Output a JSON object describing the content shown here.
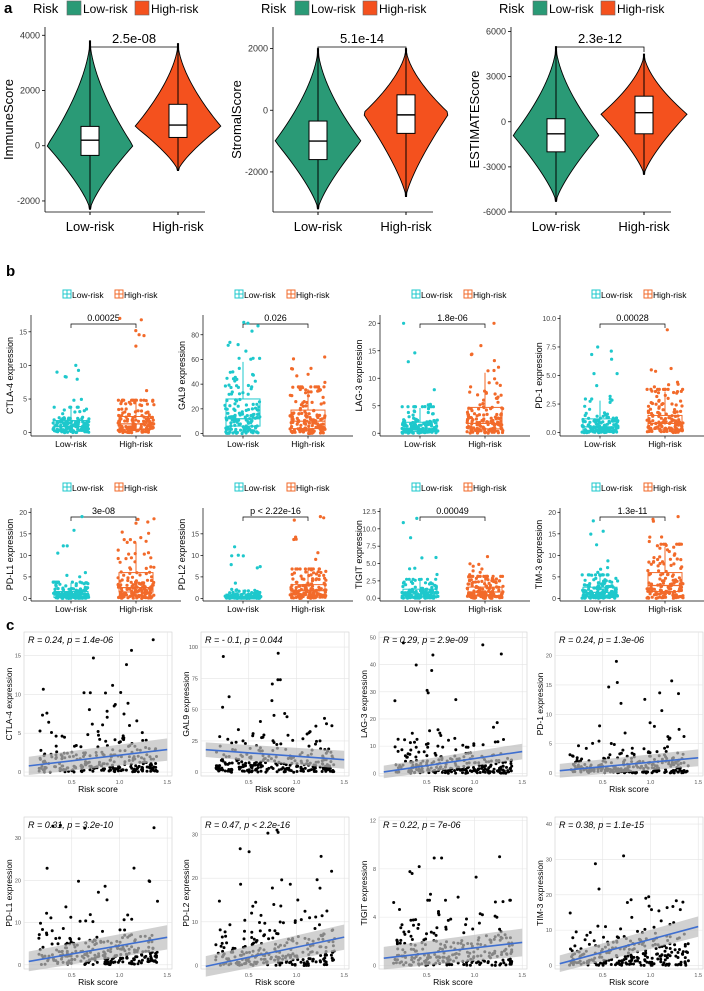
{
  "colors": {
    "low_a": "#2a9a76",
    "high_a": "#f4511e",
    "low_b": "#1ec8cc",
    "high_b": "#f26a2a",
    "reg_line": "#3f6fd0",
    "ci_band": "#bdbdbd",
    "grid": "#e4e4e4",
    "panel_bg_c": "#ffffff"
  },
  "panel_labels": [
    "a",
    "b",
    "c"
  ],
  "panel_a": {
    "legend": {
      "title": "Risk",
      "items": [
        "Low-risk",
        "High-risk"
      ]
    },
    "categories": [
      "Low-risk",
      "High-risk"
    ],
    "charts": [
      {
        "type": "violin",
        "ylabel": "ImmuneScore",
        "pvalue": "2.5e-08",
        "ylim": [
          -2400,
          4300
        ],
        "yticks": [
          "-2000",
          "0",
          "2000",
          "4000"
        ],
        "ytick_values": [
          -2000,
          0,
          2000,
          4000
        ],
        "groups": [
          {
            "name": "Low-risk",
            "min": -2300,
            "q1": -350,
            "median": 200,
            "q3": 700,
            "max": 3800,
            "mode": 0
          },
          {
            "name": "High-risk",
            "min": -900,
            "q1": 300,
            "median": 750,
            "q3": 1500,
            "max": 3700,
            "mode": 700
          }
        ]
      },
      {
        "type": "violin",
        "ylabel": "StromalScore",
        "pvalue": "5.1e-14",
        "ylim": [
          -3300,
          2700
        ],
        "yticks": [
          "-2000",
          "0",
          "2000"
        ],
        "ytick_values": [
          -2000,
          0,
          2000
        ],
        "groups": [
          {
            "name": "Low-risk",
            "min": -3200,
            "q1": -1600,
            "median": -1000,
            "q3": -350,
            "max": 2000,
            "mode": -1000
          },
          {
            "name": "High-risk",
            "min": -2800,
            "q1": -750,
            "median": -150,
            "q3": 500,
            "max": 2000,
            "mode": -100
          }
        ]
      },
      {
        "type": "violin",
        "ylabel": "ESTIMATEScore",
        "pvalue": "2.3e-12",
        "ylim": [
          -6000,
          6300
        ],
        "yticks": [
          "-6000",
          "-3000",
          "0",
          "3000",
          "6000"
        ],
        "ytick_values": [
          -6000,
          -3000,
          0,
          3000,
          6000
        ],
        "groups": [
          {
            "name": "Low-risk",
            "min": -5300,
            "q1": -2000,
            "median": -800,
            "q3": 200,
            "max": 5000,
            "mode": -900
          },
          {
            "name": "High-risk",
            "min": -3500,
            "q1": -800,
            "median": 600,
            "q3": 1700,
            "max": 4500,
            "mode": 500
          }
        ]
      }
    ]
  },
  "panel_b": {
    "legend": {
      "items": [
        "Low-risk",
        "High-risk"
      ]
    },
    "categories": [
      "Low-risk",
      "High-risk"
    ],
    "charts": [
      {
        "type": "box_jitter",
        "ylabel": "CTLA-4 expression",
        "pvalue": "0.00025",
        "ylim": [
          -0.5,
          17.5
        ],
        "yticks": [
          0,
          5,
          10,
          15
        ],
        "groups": [
          {
            "name": "Low-risk",
            "min": 0,
            "q1": 0.2,
            "median": 0.9,
            "q3": 1.8,
            "max": 3.6,
            "top": 10
          },
          {
            "name": "High-risk",
            "min": 0,
            "q1": 0.5,
            "median": 1.3,
            "q3": 2.4,
            "max": 4.6,
            "top": 17
          }
        ]
      },
      {
        "type": "box_jitter",
        "ylabel": "GAL9 expression",
        "pvalue": "0.026",
        "ylim": [
          -2,
          96
        ],
        "yticks": [
          0,
          20,
          40,
          60,
          80
        ],
        "groups": [
          {
            "name": "Low-risk",
            "min": 0,
            "q1": 6,
            "median": 12,
            "q3": 28,
            "max": 58,
            "top": 90
          },
          {
            "name": "High-risk",
            "min": 0,
            "q1": 4,
            "median": 10,
            "q3": 19,
            "max": 36,
            "top": 62
          }
        ]
      },
      {
        "type": "box_jitter",
        "ylabel": "LAG-3 expression",
        "pvalue": "1.8e-06",
        "ylim": [
          -0.5,
          21.5
        ],
        "yticks": [
          0,
          5,
          10,
          15,
          20
        ],
        "groups": [
          {
            "name": "Low-risk",
            "min": 0,
            "q1": 0.3,
            "median": 0.9,
            "q3": 2.0,
            "max": 4.6,
            "top": 20
          },
          {
            "name": "High-risk",
            "min": 0,
            "q1": 0.8,
            "median": 1.8,
            "q3": 4.7,
            "max": 11,
            "top": 20
          }
        ]
      },
      {
        "type": "box_jitter",
        "ylabel": "PD-1 expression",
        "pvalue": "0.00028",
        "ylim": [
          -0.3,
          10.3
        ],
        "yticks": [
          0,
          2.5,
          5,
          7.5,
          10
        ],
        "yticklabels": [
          "0.0",
          "2.5",
          "5.0",
          "7.5",
          "10.0"
        ],
        "groups": [
          {
            "name": "Low-risk",
            "min": 0,
            "q1": 0.2,
            "median": 0.5,
            "q3": 1.2,
            "max": 2.8,
            "top": 7.5
          },
          {
            "name": "High-risk",
            "min": 0,
            "q1": 0.3,
            "median": 0.8,
            "q3": 1.5,
            "max": 3.6,
            "top": 9
          }
        ]
      },
      {
        "type": "box_jitter",
        "ylabel": "PD-L1 expression",
        "pvalue": "3e-08",
        "ylim": [
          -0.6,
          21
        ],
        "yticks": [
          0,
          5,
          10,
          15,
          20
        ],
        "groups": [
          {
            "name": "Low-risk",
            "min": 0,
            "q1": 0.2,
            "median": 0.8,
            "q3": 1.6,
            "max": 3.6,
            "top": 19
          },
          {
            "name": "High-risk",
            "min": 0,
            "q1": 1.5,
            "median": 2.5,
            "q3": 6.0,
            "max": 13,
            "top": 18.5
          }
        ]
      },
      {
        "type": "box_jitter",
        "ylabel": "PD-L2 expression",
        "pvalue": "p < 2.22e-16",
        "ylim": [
          -0.6,
          21
        ],
        "yticks": [
          0,
          5,
          10,
          15
        ],
        "groups": [
          {
            "name": "Low-risk",
            "min": 0,
            "q1": 0.2,
            "median": 0.4,
            "q3": 1.0,
            "max": 2.0,
            "top": 12
          },
          {
            "name": "High-risk",
            "min": 0,
            "q1": 0.8,
            "median": 1.8,
            "q3": 3.2,
            "max": 6.5,
            "top": 19
          }
        ]
      },
      {
        "type": "box_jitter",
        "ylabel": "TIGIT expression",
        "pvalue": "0.00049",
        "ylim": [
          -0.4,
          13
        ],
        "yticks": [
          0,
          2.5,
          5,
          7.5,
          10,
          12.5
        ],
        "yticklabels": [
          "0.0",
          "2.5",
          "5.0",
          "7.5",
          "10.0",
          "12.5"
        ],
        "groups": [
          {
            "name": "Low-risk",
            "min": 0,
            "q1": 0.2,
            "median": 0.6,
            "q3": 1.3,
            "max": 2.6,
            "top": 11.5
          },
          {
            "name": "High-risk",
            "min": 0,
            "q1": 0.4,
            "median": 0.9,
            "q3": 1.6,
            "max": 3.0,
            "top": 6
          }
        ]
      },
      {
        "type": "box_jitter",
        "ylabel": "TIM-3 expression",
        "pvalue": "1.3e-11",
        "ylim": [
          -0.6,
          21
        ],
        "yticks": [
          0,
          5,
          10,
          15,
          20
        ],
        "groups": [
          {
            "name": "Low-risk",
            "min": 0,
            "q1": 0.6,
            "median": 1.4,
            "q3": 2.6,
            "max": 5.2,
            "top": 18
          },
          {
            "name": "High-risk",
            "min": 0,
            "q1": 1.6,
            "median": 3.0,
            "q3": 6.0,
            "max": 12,
            "top": 19
          }
        ]
      }
    ]
  },
  "panel_c": {
    "xlabel": "Risk score",
    "xlim": [
      0,
      1.55
    ],
    "xticks": [
      0.5,
      1.0,
      1.5
    ],
    "xticklabels": [
      "0.5",
      "1.0",
      "1.5"
    ],
    "charts": [
      {
        "type": "scatter",
        "ylabel": "CTLA-4 expression",
        "annotation": "R = 0.24, p = 1.4e-06",
        "ylim": [
          -0.5,
          18
        ],
        "yticks": [
          0,
          5,
          10,
          15
        ],
        "yticklabels": [
          "0",
          "5",
          "10",
          "15"
        ],
        "fit": {
          "y0": 0.8,
          "y1": 2.9
        },
        "ymax_pts": 17
      },
      {
        "type": "scatter",
        "ylabel": "GAL9 expression",
        "annotation": "R = - 0.1, p = 0.044",
        "ylim": [
          -3,
          112
        ],
        "yticks": [
          0,
          25,
          50,
          75,
          100
        ],
        "yticklabels": [
          "0",
          "25",
          "50",
          "75",
          "100"
        ],
        "fit": {
          "y0": 18,
          "y1": 10
        },
        "ymax_pts": 95
      },
      {
        "type": "scatter",
        "ylabel": "LAG-3 expression",
        "annotation": "R = 0.29, p = 2.9e-09",
        "ylim": [
          -1,
          52
        ],
        "yticks": [
          0,
          10,
          20,
          30,
          40,
          50
        ],
        "yticklabels": [
          "0",
          "10",
          "20",
          "30",
          "40",
          "50"
        ],
        "fit": {
          "y0": 0.5,
          "y1": 8
        },
        "ymax_pts": 48
      },
      {
        "type": "scatter",
        "ylabel": "PD-1 expression",
        "annotation": "R = 0.24, p = 1.3e-06",
        "ylim": [
          -0.5,
          24
        ],
        "yticks": [
          0,
          5,
          10,
          15,
          20
        ],
        "yticklabels": [
          "0",
          "5",
          "10",
          "15",
          "20"
        ],
        "fit": {
          "y0": 0.4,
          "y1": 2.6
        },
        "ymax_pts": 19
      },
      {
        "type": "scatter",
        "ylabel": "PD-L1 expression",
        "annotation": "R = 0.31, p = 3.2e-10",
        "ylim": [
          -1,
          35
        ],
        "yticks": [
          0,
          10,
          20,
          30
        ],
        "yticklabels": [
          "0",
          "10",
          "20",
          "30"
        ],
        "fit": {
          "y0": 0.8,
          "y1": 6.5
        },
        "ymax_pts": 33
      },
      {
        "type": "scatter",
        "ylabel": "PD-L2 expression",
        "annotation": "R = 0.47, p < 2.2e-16",
        "ylim": [
          -0.8,
          34
        ],
        "yticks": [
          0,
          10,
          20,
          30
        ],
        "yticklabels": [
          "0",
          "10",
          "20",
          "30"
        ],
        "fit": {
          "y0": -0.2,
          "y1": 6.5
        },
        "ymax_pts": 31
      },
      {
        "type": "scatter",
        "ylabel": "TIGIT expression",
        "annotation": "R = 0.22, p = 7e-06",
        "ylim": [
          -0.3,
          12.3
        ],
        "yticks": [
          0,
          4,
          8,
          12
        ],
        "yticklabels": [
          "0",
          "4",
          "8",
          "12"
        ],
        "fit": {
          "y0": 0.6,
          "y1": 1.9
        },
        "ymax_pts": 9
      },
      {
        "type": "scatter",
        "ylabel": "TIM-3 expression",
        "annotation": "R = 0.38, p = 1.1e-15",
        "ylim": [
          -1,
          42
        ],
        "yticks": [
          0,
          10,
          20,
          30,
          40
        ],
        "yticklabels": [
          "0",
          "10",
          "20",
          "30",
          "40"
        ],
        "fit": {
          "y0": 0.5,
          "y1": 11
        },
        "ymax_pts": 31
      }
    ]
  }
}
